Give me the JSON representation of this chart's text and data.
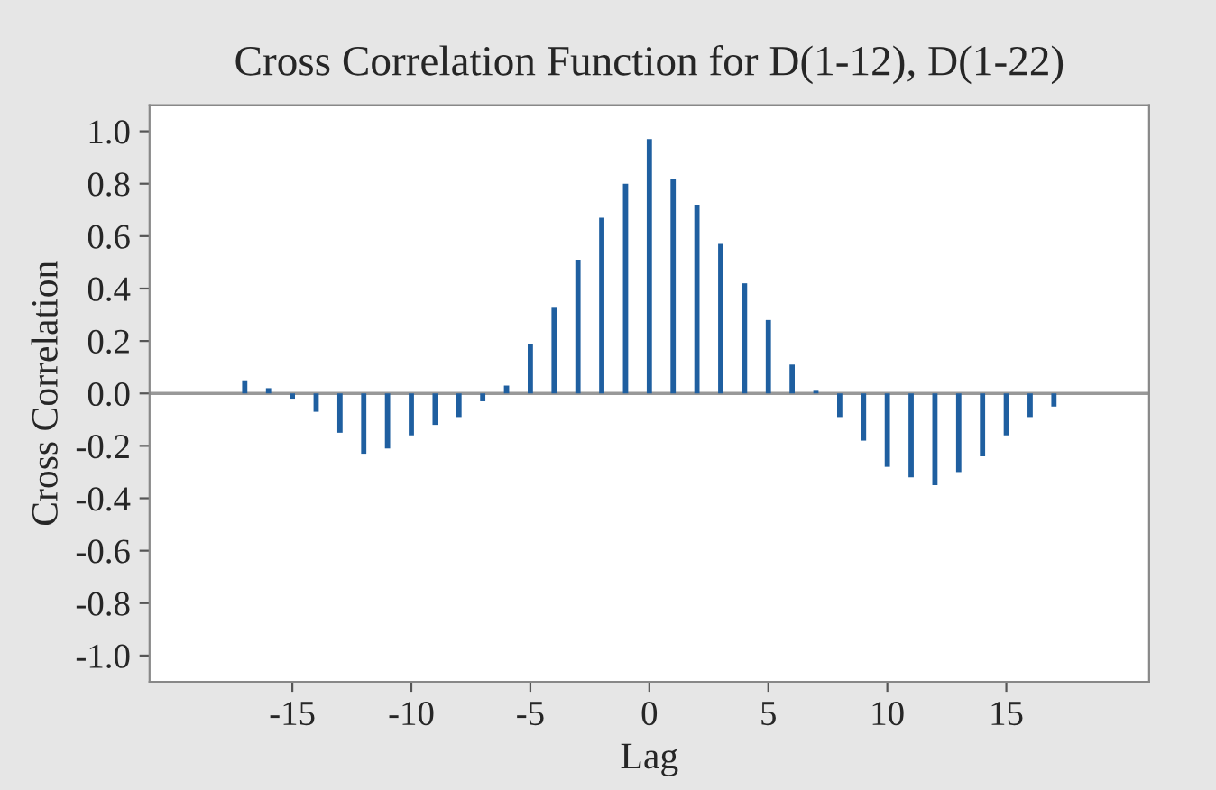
{
  "chart_data": {
    "type": "bar",
    "title": "Cross Correlation Function for D(1-12), D(1-22)",
    "xlabel": "Lag",
    "ylabel": "Cross Correlation",
    "x": [
      -17,
      -16,
      -15,
      -14,
      -13,
      -12,
      -11,
      -10,
      -9,
      -8,
      -7,
      -6,
      -5,
      -4,
      -3,
      -2,
      -1,
      0,
      1,
      2,
      3,
      4,
      5,
      6,
      7,
      8,
      9,
      10,
      11,
      12,
      13,
      14,
      15,
      16,
      17
    ],
    "values": [
      0.05,
      0.02,
      -0.02,
      -0.07,
      -0.15,
      -0.23,
      -0.21,
      -0.16,
      -0.12,
      -0.09,
      -0.03,
      0.03,
      0.19,
      0.33,
      0.51,
      0.67,
      0.8,
      0.97,
      0.82,
      0.72,
      0.57,
      0.42,
      0.28,
      0.11,
      0.01,
      -0.09,
      -0.18,
      -0.28,
      -0.32,
      -0.35,
      -0.3,
      -0.24,
      -0.16,
      -0.09,
      -0.05
    ],
    "color": "#1f5fa0",
    "xlim": [
      -21,
      21
    ],
    "xticks": [
      -15,
      -10,
      -5,
      0,
      5,
      10,
      15
    ],
    "ylim": [
      -1.1,
      1.1
    ],
    "yticks": [
      {
        "value": -1.0,
        "label": "-1.0"
      },
      {
        "value": -0.8,
        "label": "-0.8"
      },
      {
        "value": -0.6,
        "label": "-0.6"
      },
      {
        "value": -0.4,
        "label": "-0.4"
      },
      {
        "value": -0.2,
        "label": "-0.2"
      },
      {
        "value": 0.0,
        "label": "0.0"
      },
      {
        "value": 0.2,
        "label": "0.2"
      },
      {
        "value": 0.4,
        "label": "0.4"
      },
      {
        "value": 0.6,
        "label": "0.6"
      },
      {
        "value": 0.8,
        "label": "0.8"
      },
      {
        "value": 1.0,
        "label": "1.0"
      }
    ],
    "ref_lines": [
      {
        "axis": "y",
        "value": 0,
        "color": "#999999"
      }
    ],
    "grid": false
  }
}
